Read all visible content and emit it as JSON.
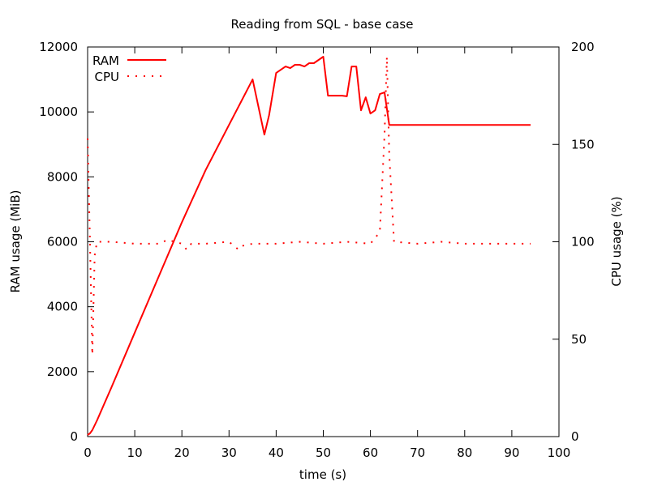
{
  "chart_data": {
    "type": "line",
    "title": "Reading from SQL - base case",
    "xlabel": "time (s)",
    "ylabel": "RAM usage (MiB)",
    "y2label": "CPU usage (%)",
    "xlim": [
      0,
      100
    ],
    "ylim": [
      0,
      12000
    ],
    "y2lim": [
      0,
      200
    ],
    "xticks": [
      "0",
      "10",
      "20",
      "30",
      "40",
      "50",
      "60",
      "70",
      "80",
      "90",
      "100"
    ],
    "yticks": [
      "0",
      "2000",
      "4000",
      "6000",
      "8000",
      "10000",
      "12000"
    ],
    "y2ticks": [
      "0",
      "50",
      "100",
      "150",
      "200"
    ],
    "grid": false,
    "legend_position": "top-left",
    "color": "#ff0000",
    "series": [
      {
        "name": "RAM",
        "axis": "y",
        "style": "solid",
        "x": [
          0,
          0.5,
          1,
          2,
          5,
          10,
          15,
          20,
          25,
          30,
          35,
          37.5,
          38.5,
          40,
          41,
          42,
          43,
          44,
          45,
          46,
          47,
          48,
          49,
          50,
          51,
          52,
          53,
          54,
          55,
          56,
          57,
          58,
          59,
          60,
          61,
          62,
          63,
          64,
          65,
          70,
          80,
          90,
          94
        ],
        "values": [
          50,
          100,
          200,
          500,
          1500,
          3200,
          4900,
          6600,
          8200,
          9600,
          11000,
          9300,
          9900,
          11200,
          11300,
          11400,
          11350,
          11450,
          11450,
          11400,
          11500,
          11500,
          11600,
          11700,
          10500,
          10500,
          10500,
          10500,
          10480,
          11400,
          11400,
          10050,
          10450,
          9950,
          10050,
          10550,
          10600,
          9600,
          9600,
          9600,
          9600,
          9600,
          9600
        ]
      },
      {
        "name": "CPU",
        "axis": "y2",
        "style": "dotted",
        "x": [
          0,
          0.5,
          1,
          1.5,
          2,
          5,
          10,
          15,
          17,
          20,
          21,
          22,
          25,
          30,
          32,
          33,
          35,
          40,
          45,
          50,
          55,
          60,
          62,
          63,
          63.5,
          64,
          65,
          70,
          75,
          80,
          85,
          90,
          94
        ],
        "values": [
          153,
          100,
          42,
          93,
          100,
          100,
          99,
          99,
          101,
          99,
          96,
          99,
          99,
          100,
          96,
          98,
          99,
          99,
          100,
          99,
          100,
          99,
          105,
          155,
          195,
          145,
          100,
          99,
          100,
          99,
          99,
          99,
          99
        ]
      }
    ]
  }
}
